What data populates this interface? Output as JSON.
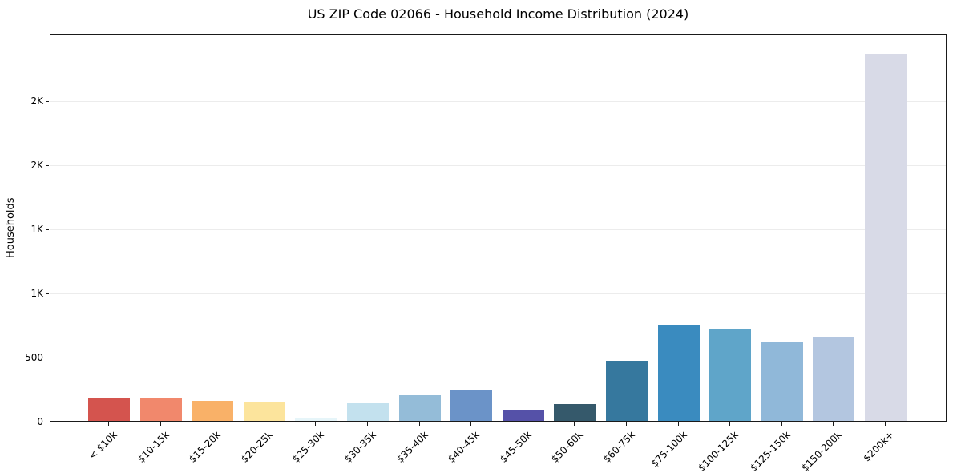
{
  "chart_data": {
    "type": "bar",
    "title": "US ZIP Code 02066 - Household Income Distribution (2024)",
    "xlabel": "",
    "ylabel": "Households",
    "categories": [
      "< $10k",
      "$10-15k",
      "$15-20k",
      "$20-25k",
      "$25-30k",
      "$30-35k",
      "$35-40k",
      "$40-45k",
      "$45-50k",
      "$50-60k",
      "$60-75k",
      "$75-100k",
      "$100-125k",
      "$125-150k",
      "$150-200k",
      "$200k+"
    ],
    "values": [
      183,
      175,
      158,
      150,
      27,
      138,
      203,
      246,
      90,
      133,
      466,
      748,
      710,
      613,
      658,
      2862
    ],
    "bar_colors": [
      "#d4544e",
      "#f1886c",
      "#f9b168",
      "#fce49c",
      "#e6f5f9",
      "#c3e1ee",
      "#94bcd8",
      "#6b93c8",
      "#5551a8",
      "#35596b",
      "#36789e",
      "#3a8bbf",
      "#5fa5c9",
      "#90b8d9",
      "#b3c6e0",
      "#d8dae7"
    ],
    "ylim": [
      0,
      3020
    ],
    "yticks": [
      {
        "value": 0,
        "label": "0"
      },
      {
        "value": 500,
        "label": "500"
      },
      {
        "value": 1000,
        "label": "1K"
      },
      {
        "value": 1500,
        "label": "1K"
      },
      {
        "value": 2000,
        "label": "2K"
      },
      {
        "value": 2500,
        "label": "2K"
      }
    ],
    "grid": true,
    "legend": "none",
    "background_color": "#ffffff",
    "spine_color": "#1a1a1a",
    "gridline_color": "#ececec"
  }
}
